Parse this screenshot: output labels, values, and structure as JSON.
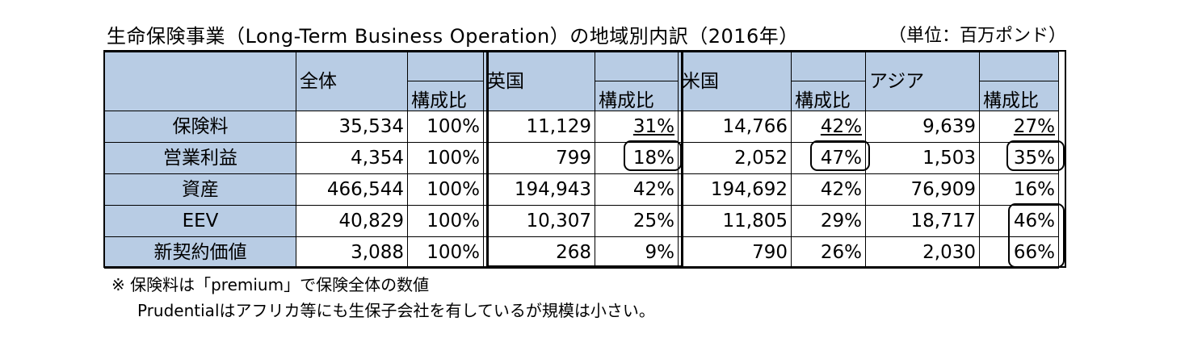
{
  "title": "生命保険事業（Long-Term Business Operation）の地域別内訳（2016年）",
  "unit": "（単位：百万ポンド）",
  "header": {
    "groups": [
      "全体",
      "英国",
      "米国",
      "アジア"
    ],
    "ratio_label": "構成比"
  },
  "rows": [
    {
      "label": "保険料",
      "total": "35,534",
      "total_pct": "100%",
      "uk": "11,129",
      "uk_pct": "31%",
      "us": "14,766",
      "us_pct": "42%",
      "asia": "9,639",
      "asia_pct": "27%"
    },
    {
      "label": "営業利益",
      "total": "4,354",
      "total_pct": "100%",
      "uk": "799",
      "uk_pct": "18%",
      "us": "2,052",
      "us_pct": "47%",
      "asia": "1,503",
      "asia_pct": "35%"
    },
    {
      "label": "資産",
      "total": "466,544",
      "total_pct": "100%",
      "uk": "194,943",
      "uk_pct": "42%",
      "us": "194,692",
      "us_pct": "42%",
      "asia": "76,909",
      "asia_pct": "16%"
    },
    {
      "label": "EEV",
      "total": "40,829",
      "total_pct": "100%",
      "uk": "10,307",
      "uk_pct": "25%",
      "us": "11,805",
      "us_pct": "29%",
      "asia": "18,717",
      "asia_pct": "46%"
    },
    {
      "label": "新契約価値",
      "total": "3,088",
      "total_pct": "100%",
      "uk": "268",
      "uk_pct": "9%",
      "us": "790",
      "us_pct": "26%",
      "asia": "2,030",
      "asia_pct": "66%"
    }
  ],
  "notes": [
    "※ 保険料は「premium」で保険全体の数値",
    "Prudentialはアフリカ等にも生保子会社を有しているが規模は小さい。"
  ],
  "colors": {
    "header_bg": "#b8cce4",
    "border": "#000000"
  }
}
